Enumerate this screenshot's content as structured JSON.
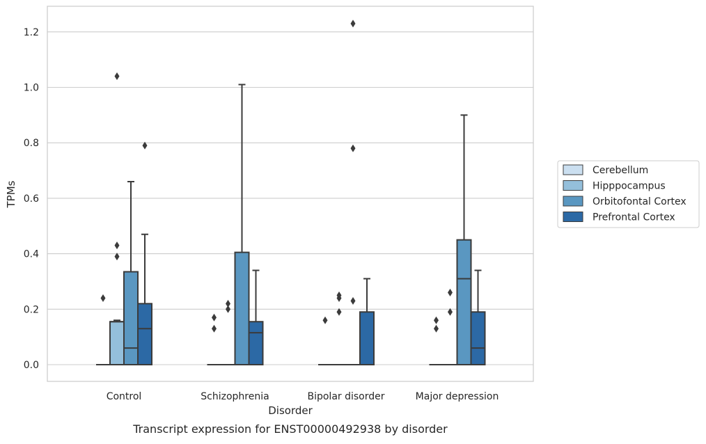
{
  "chart_data": {
    "type": "box",
    "caption": "Transcript expression for ENST00000492938 by disorder",
    "xlabel": "Disorder",
    "ylabel": "TPMs",
    "ylim": [
      -0.06,
      1.29
    ],
    "yticks": [
      0.0,
      0.2,
      0.4,
      0.6,
      0.8,
      1.0,
      1.2
    ],
    "ytick_labels": [
      "0.0",
      "0.2",
      "0.4",
      "0.6",
      "0.8",
      "1.0",
      "1.2"
    ],
    "grid": "horizontal",
    "legend_position": "right",
    "categories": [
      "Control",
      "Schizophrenia",
      "Bipolar disorder",
      "Major depression"
    ],
    "series": [
      {
        "name": "Cerebellum",
        "color": "#cbdff0",
        "boxes": [
          {
            "category": "Control",
            "q1": 0,
            "median": 0,
            "q3": 0,
            "whisker_low": 0,
            "whisker_high": 0,
            "outliers": [
              0.24
            ]
          },
          {
            "category": "Schizophrenia",
            "q1": 0,
            "median": 0,
            "q3": 0,
            "whisker_low": 0,
            "whisker_high": 0,
            "outliers": [
              0.13,
              0.17
            ]
          },
          {
            "category": "Bipolar disorder",
            "q1": 0,
            "median": 0,
            "q3": 0,
            "whisker_low": 0,
            "whisker_high": 0,
            "outliers": [
              0.16
            ]
          },
          {
            "category": "Major depression",
            "q1": 0,
            "median": 0,
            "q3": 0,
            "whisker_low": 0,
            "whisker_high": 0,
            "outliers": [
              0.13,
              0.16
            ]
          }
        ]
      },
      {
        "name": "Hipppocampus",
        "color": "#94bfdb",
        "boxes": [
          {
            "category": "Control",
            "q1": 0,
            "median": 0.155,
            "q3": 0.155,
            "whisker_low": 0,
            "whisker_high": 0.16,
            "outliers": [
              0.39,
              0.43,
              1.04
            ]
          },
          {
            "category": "Schizophrenia",
            "q1": 0,
            "median": 0,
            "q3": 0,
            "whisker_low": 0,
            "whisker_high": 0,
            "outliers": [
              0.2,
              0.22
            ]
          },
          {
            "category": "Bipolar disorder",
            "q1": 0,
            "median": 0,
            "q3": 0,
            "whisker_low": 0,
            "whisker_high": 0,
            "outliers": [
              0.19,
              0.24,
              0.25
            ]
          },
          {
            "category": "Major depression",
            "q1": 0,
            "median": 0,
            "q3": 0,
            "whisker_low": 0,
            "whisker_high": 0,
            "outliers": [
              0.19,
              0.26
            ]
          }
        ]
      },
      {
        "name": "Orbitofontal Cortex",
        "color": "#5a97c1",
        "boxes": [
          {
            "category": "Control",
            "q1": 0,
            "median": 0.06,
            "q3": 0.335,
            "whisker_low": 0,
            "whisker_high": 0.66,
            "outliers": []
          },
          {
            "category": "Schizophrenia",
            "q1": 0,
            "median": 0,
            "q3": 0.405,
            "whisker_low": 0,
            "whisker_high": 1.01,
            "outliers": []
          },
          {
            "category": "Bipolar disorder",
            "q1": 0,
            "median": 0,
            "q3": 0,
            "whisker_low": 0,
            "whisker_high": 0,
            "outliers": [
              0.23,
              0.78,
              1.23
            ]
          },
          {
            "category": "Major depression",
            "q1": 0,
            "median": 0.31,
            "q3": 0.45,
            "whisker_low": 0,
            "whisker_high": 0.9,
            "outliers": []
          }
        ]
      },
      {
        "name": "Prefrontal Cortex",
        "color": "#2c69a5",
        "boxes": [
          {
            "category": "Control",
            "q1": 0,
            "median": 0.13,
            "q3": 0.22,
            "whisker_low": 0,
            "whisker_high": 0.47,
            "outliers": [
              0.79
            ]
          },
          {
            "category": "Schizophrenia",
            "q1": 0,
            "median": 0.115,
            "q3": 0.155,
            "whisker_low": 0,
            "whisker_high": 0.34,
            "outliers": []
          },
          {
            "category": "Bipolar disorder",
            "q1": 0,
            "median": 0,
            "q3": 0.19,
            "whisker_low": 0,
            "whisker_high": 0.31,
            "outliers": []
          },
          {
            "category": "Major depression",
            "q1": 0,
            "median": 0.06,
            "q3": 0.19,
            "whisker_low": 0,
            "whisker_high": 0.34,
            "outliers": []
          }
        ]
      }
    ]
  },
  "colors": {
    "grid": "#cccccc",
    "frame": "#cccccc",
    "box_edge": "#3b3b3b"
  }
}
